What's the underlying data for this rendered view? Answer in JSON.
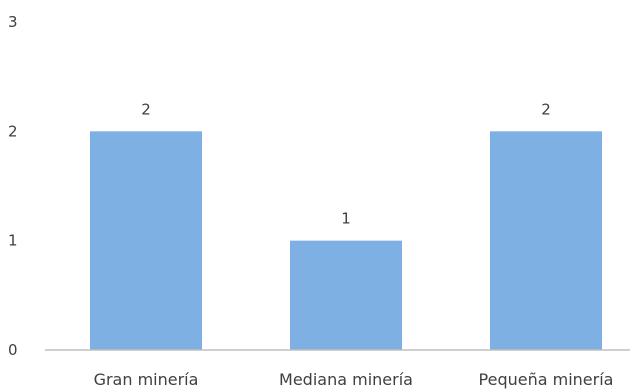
{
  "chart_data": {
    "type": "bar",
    "categories": [
      "Gran minería",
      "Mediana minería",
      "Pequeña minería"
    ],
    "values": [
      2,
      1,
      2
    ],
    "data_labels": [
      "2",
      "1",
      "2"
    ],
    "title": "",
    "xlabel": "",
    "ylabel": "",
    "ylim": [
      0,
      3
    ],
    "yticks": [
      "0",
      "1",
      "2",
      "3"
    ],
    "grid": false,
    "legend": "none",
    "colors": {
      "bar": "#7fb0e3",
      "axis": "#bfbfbf",
      "text": "#404040"
    }
  }
}
